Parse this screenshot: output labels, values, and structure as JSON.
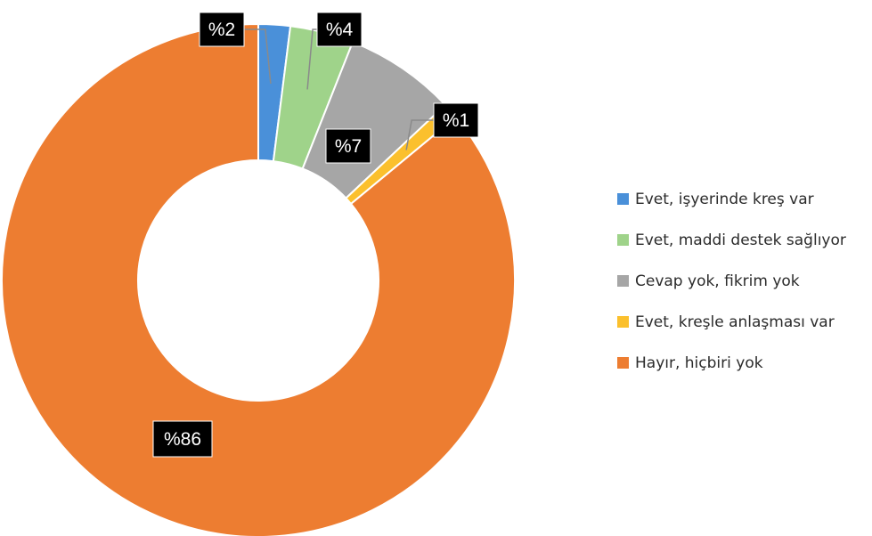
{
  "chart_data": {
    "type": "pie",
    "donut": true,
    "legend_position": "right",
    "unit": "%",
    "slices": [
      {
        "label": "Evet, işyerinde kreş var",
        "value": 2,
        "display": "%2",
        "color": "#4a90d9"
      },
      {
        "label": "Evet, maddi destek sağlıyor",
        "value": 4,
        "display": "%4",
        "color": "#9fd38a"
      },
      {
        "label": "Cevap yok, fikrim yok",
        "value": 7,
        "display": "%7",
        "color": "#a6a6a6"
      },
      {
        "label": "Evet, kreşle anlaşması var",
        "value": 1,
        "display": "%1",
        "color": "#fbc02d"
      },
      {
        "label": "Hayır, hiçbiri yok",
        "value": 86,
        "display": "%86",
        "color": "#ed7d31"
      }
    ]
  }
}
